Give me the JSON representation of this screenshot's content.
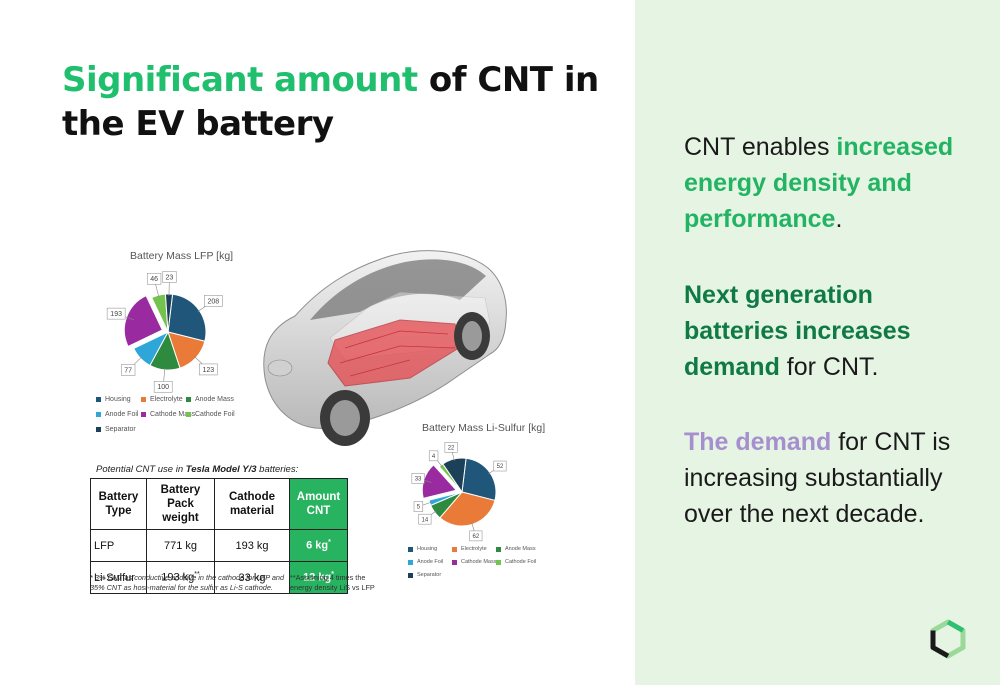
{
  "title": {
    "accent": "Significant amount",
    "rest": " of CNT in the EV battery"
  },
  "right_panel": {
    "p1": {
      "a": "CNT enables ",
      "b": "increased energy density and performance",
      "c": "."
    },
    "p2": {
      "a": "Next generation batteries increases demand",
      "b": " for CNT."
    },
    "p3": {
      "a": "The demand",
      "b": " for CNT is increasing substantially over the next decade."
    }
  },
  "chart_data": [
    {
      "type": "pie",
      "title": "Battery Mass LFP [kg]",
      "categories": [
        "Housing",
        "Electrolyte",
        "Anode Mass",
        "Anode Foil",
        "Cathode Mass",
        "Cathode Foil",
        "Separator"
      ],
      "values": [
        208,
        123,
        100,
        77,
        193,
        46,
        23
      ],
      "colors": [
        "#1f5679",
        "#ea7a38",
        "#2e8a3e",
        "#2ea7d8",
        "#9a2aa0",
        "#74c34e",
        "#1c4058"
      ],
      "legend_position": "bottom"
    },
    {
      "type": "pie",
      "title": "Battery Mass Li-Sulfur [kg]",
      "categories": [
        "Housing",
        "Electrolyte",
        "Anode Mass",
        "Anode Foil",
        "Cathode Mass",
        "Cathode Foil",
        "Separator"
      ],
      "values": [
        52,
        62,
        14,
        5,
        33,
        4,
        22
      ],
      "colors": [
        "#1f5679",
        "#ea7a38",
        "#2e8a3e",
        "#2ea7d8",
        "#9a2aa0",
        "#74c34e",
        "#1c4058"
      ],
      "legend_position": "bottom"
    }
  ],
  "cnt_table": {
    "caption_pre": "Potential CNT use in ",
    "caption_bold": "Tesla Model Y/3",
    "caption_post": " batteries:",
    "headers": [
      "Battery Type",
      "Battery Pack weight",
      "Cathode material",
      "Amount CNT"
    ],
    "rows": [
      {
        "type": "LFP",
        "pack": "771 kg",
        "cathode": "193 kg",
        "cnt": "6 kg",
        "cnt_mark": "*"
      },
      {
        "type": "Li-Sulfur",
        "pack": "193 kg",
        "pack_mark": "**",
        "cathode": "33 kg",
        "cnt": "12 kg",
        "cnt_mark": "*"
      }
    ],
    "footnote1": "* 3% CNT as conductive additive in the cathode for LFP and 35% CNT as host-material for the sulfur as Li-S cathode.",
    "footnote2": "**Assuming 4 times the energy density LiS vs LFP"
  },
  "icons": [
    "car-illustration",
    "logo-hexagon-icon"
  ]
}
